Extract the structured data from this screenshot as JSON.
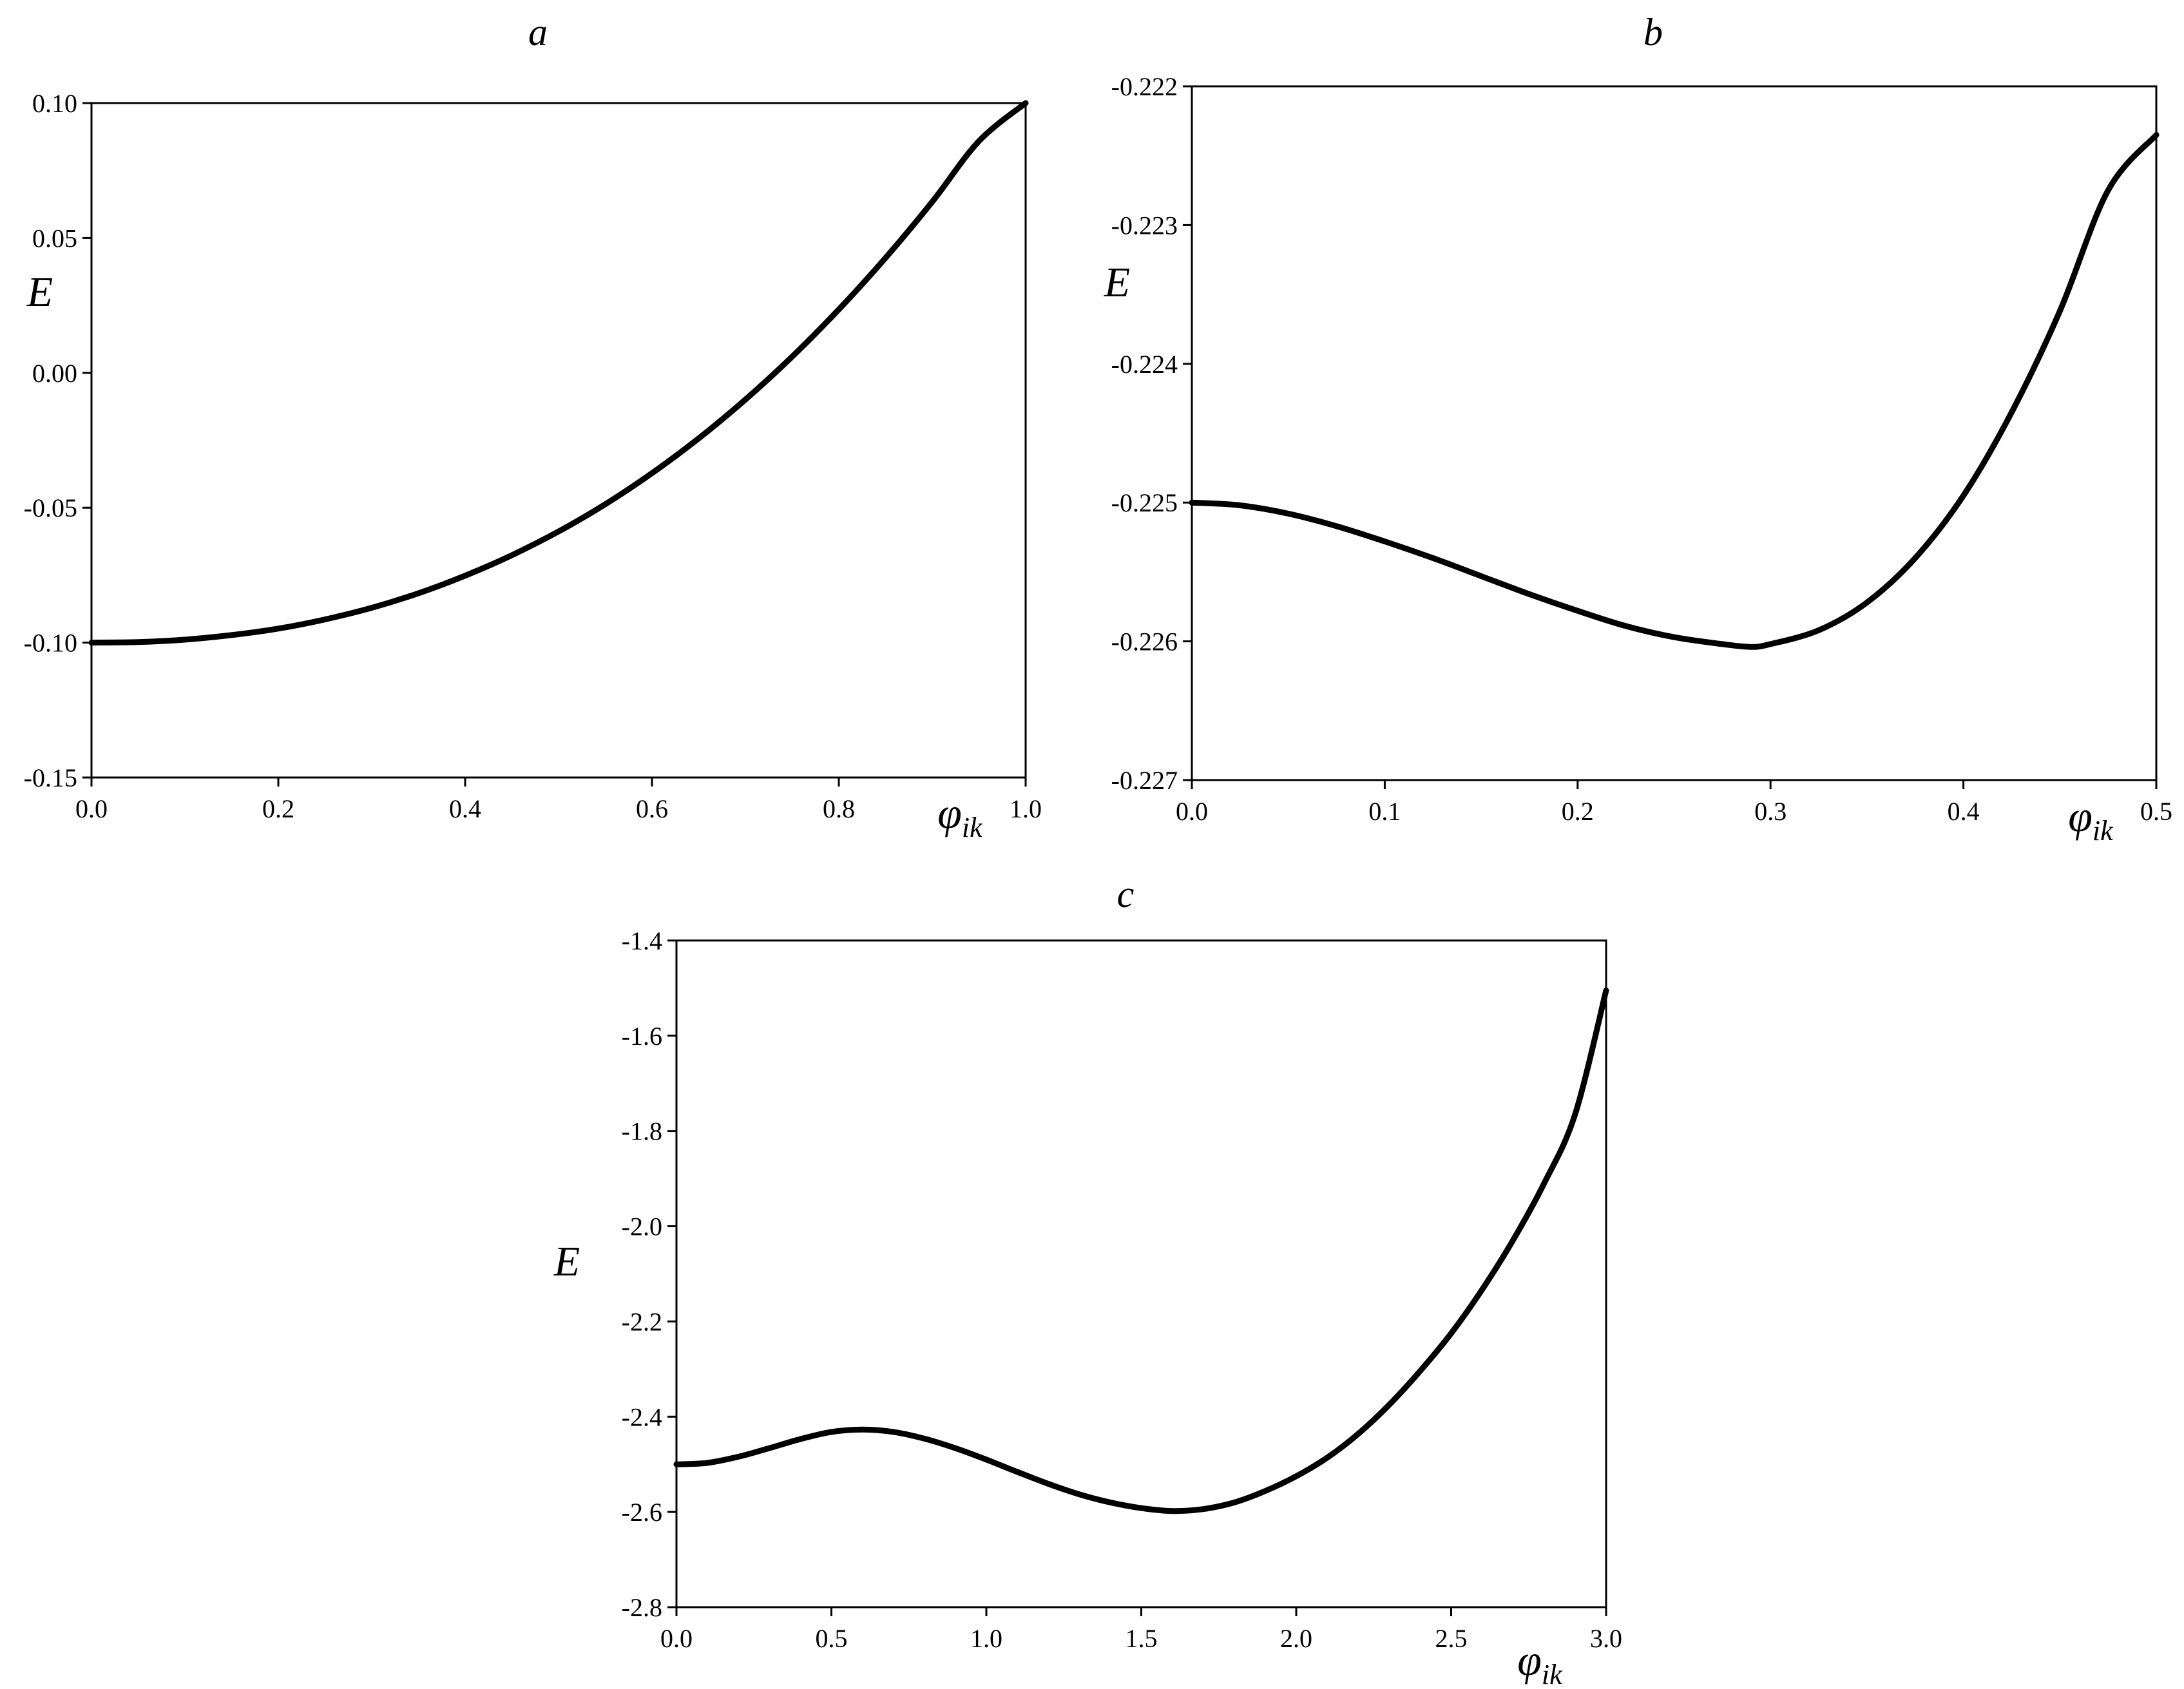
{
  "chart_data": [
    {
      "type": "line",
      "panel": "a",
      "ylabel": "E",
      "xlabel": {
        "base": "φ",
        "sub": "ik"
      },
      "xlim": [
        0.0,
        1.0
      ],
      "ylim": [
        -0.15,
        0.1
      ],
      "x_ticks": [
        0.0,
        0.2,
        0.4,
        0.6,
        0.8,
        1.0
      ],
      "x_tick_labels": [
        "0.0",
        "0.2",
        "0.4",
        "0.6",
        "0.8",
        "1.0"
      ],
      "y_ticks": [
        -0.15,
        -0.1,
        -0.05,
        0.0,
        0.05,
        0.1
      ],
      "y_tick_labels": [
        "-0.15",
        "-0.10",
        "-0.05",
        "0.00",
        "0.05",
        "0.10"
      ],
      "series": [
        {
          "x": [
            0.0,
            0.05,
            0.1,
            0.15,
            0.2,
            0.25,
            0.3,
            0.35,
            0.4,
            0.45,
            0.5,
            0.55,
            0.6,
            0.65,
            0.7,
            0.75,
            0.8,
            0.85,
            0.9,
            0.95,
            1.0
          ],
          "y": [
            -0.1,
            -0.0998,
            -0.0989,
            -0.0972,
            -0.0948,
            -0.0914,
            -0.0871,
            -0.0817,
            -0.0752,
            -0.0676,
            -0.0588,
            -0.0487,
            -0.0372,
            -0.0243,
            -0.0099,
            0.006,
            0.0235,
            0.0426,
            0.0634,
            0.0859,
            0.1
          ]
        }
      ],
      "grid": false,
      "line_color": "#000000"
    },
    {
      "type": "line",
      "panel": "b",
      "ylabel": "E",
      "xlabel": {
        "base": "φ",
        "sub": "ik"
      },
      "xlim": [
        0.0,
        0.5
      ],
      "ylim": [
        -0.227,
        -0.222
      ],
      "x_ticks": [
        0.0,
        0.1,
        0.2,
        0.3,
        0.4,
        0.5
      ],
      "x_tick_labels": [
        "0.0",
        "0.1",
        "0.2",
        "0.3",
        "0.4",
        "0.5"
      ],
      "y_ticks": [
        -0.227,
        -0.226,
        -0.225,
        -0.224,
        -0.223,
        -0.222
      ],
      "y_tick_labels": [
        "-0.227",
        "-0.226",
        "-0.225",
        "-0.224",
        "-0.223",
        "-0.222"
      ],
      "series": [
        {
          "x": [
            0.0,
            0.025,
            0.05,
            0.075,
            0.1,
            0.125,
            0.15,
            0.175,
            0.2,
            0.225,
            0.25,
            0.275,
            0.29,
            0.3,
            0.325,
            0.35,
            0.375,
            0.4,
            0.425,
            0.45,
            0.475,
            0.5
          ],
          "y": [
            -0.225,
            -0.22502,
            -0.22508,
            -0.22517,
            -0.22528,
            -0.2254,
            -0.22553,
            -0.22566,
            -0.22578,
            -0.22589,
            -0.22597,
            -0.22602,
            -0.22604,
            -0.22602,
            -0.22592,
            -0.22572,
            -0.2254,
            -0.22495,
            -0.22435,
            -0.22362,
            -0.22275,
            -0.22235
          ]
        }
      ],
      "grid": false,
      "line_color": "#000000"
    },
    {
      "type": "line",
      "panel": "c",
      "ylabel": "E",
      "xlabel": {
        "base": "φ",
        "sub": "ik"
      },
      "xlim": [
        0.0,
        3.0
      ],
      "ylim": [
        -2.8,
        -1.4
      ],
      "x_ticks": [
        0.0,
        0.5,
        1.0,
        1.5,
        2.0,
        2.5,
        3.0
      ],
      "x_tick_labels": [
        "0.0",
        "0.5",
        "1.0",
        "1.5",
        "2.0",
        "2.5",
        "3.0"
      ],
      "y_ticks": [
        -2.8,
        -2.6,
        -2.4,
        -2.2,
        -2.0,
        -1.8,
        -1.6,
        -1.4
      ],
      "y_tick_labels": [
        "-2.8",
        "-2.6",
        "-2.4",
        "-2.2",
        "-2.0",
        "-1.8",
        "-1.6",
        "-1.4"
      ],
      "series": [
        {
          "x": [
            0.0,
            0.1,
            0.2,
            0.3,
            0.4,
            0.5,
            0.6,
            0.7,
            0.8,
            0.9,
            1.0,
            1.1,
            1.2,
            1.3,
            1.4,
            1.5,
            1.6,
            1.7,
            1.8,
            1.9,
            2.0,
            2.1,
            2.2,
            2.3,
            2.4,
            2.5,
            2.6,
            2.7,
            2.8,
            2.9,
            3.0
          ],
          "y": [
            -2.5,
            -2.497,
            -2.484,
            -2.466,
            -2.447,
            -2.432,
            -2.427,
            -2.432,
            -2.446,
            -2.466,
            -2.49,
            -2.516,
            -2.541,
            -2.563,
            -2.58,
            -2.592,
            -2.598,
            -2.594,
            -2.58,
            -2.556,
            -2.525,
            -2.486,
            -2.436,
            -2.375,
            -2.304,
            -2.225,
            -2.133,
            -2.029,
            -1.91,
            -1.765,
            -1.505
          ]
        }
      ],
      "grid": false,
      "line_color": "#000000"
    }
  ]
}
